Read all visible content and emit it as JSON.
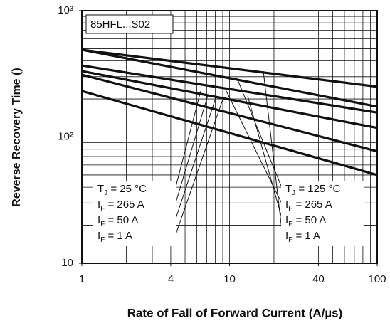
{
  "chart_data": {
    "type": "line",
    "title": "85HFL...S02",
    "xlabel": "Rate of Fall of Forward Current (A/µs)",
    "ylabel": "Reverse Recovery Time ()",
    "log_x": true,
    "log_y": true,
    "xlim": [
      1,
      100
    ],
    "ylim": [
      10,
      1000
    ],
    "xticks": [
      1,
      4,
      10,
      40,
      100
    ],
    "yticks": [
      {
        "value": 10,
        "label": "10"
      },
      {
        "value": 100,
        "label": "10²"
      },
      {
        "value": 1000,
        "label": "10³"
      }
    ],
    "xgrid": [
      1,
      2,
      3,
      4,
      5,
      6,
      7,
      8,
      9,
      10,
      20,
      30,
      40,
      50,
      60,
      70,
      80,
      90,
      100
    ],
    "ygrid": [
      10,
      20,
      30,
      40,
      50,
      60,
      70,
      80,
      90,
      100,
      200,
      300,
      400,
      500,
      600,
      700,
      800,
      900,
      1000
    ],
    "grid": true,
    "x": [
      1,
      100
    ],
    "series": [
      {
        "color": "#111111",
        "values": [
          490,
          250
        ]
      },
      {
        "color": "#111111",
        "values": [
          490,
          174
        ]
      },
      {
        "color": "#111111",
        "values": [
          368,
          156
        ]
      },
      {
        "color": "#111111",
        "values": [
          332,
          118
        ]
      },
      {
        "color": "#111111",
        "values": [
          311,
          77
        ]
      },
      {
        "color": "#111111",
        "values": [
          231,
          50
        ]
      }
    ],
    "annotations_left": [
      {
        "main": "T",
        "sub": "J",
        "rest": " =  25 °C"
      },
      {
        "main": "I",
        "sub": "F",
        "rest": " = 265 A"
      },
      {
        "main": "I",
        "sub": "F",
        "rest": " = 50 A"
      },
      {
        "main": "I",
        "sub": "F",
        "rest": " = 1 A"
      }
    ],
    "annotations_right": [
      {
        "main": "T",
        "sub": "J",
        "rest": " = 125 °C"
      },
      {
        "main": "I",
        "sub": "F",
        "rest": " = 265 A"
      },
      {
        "main": "I",
        "sub": "F",
        "rest": " = 50 A"
      },
      {
        "main": "I",
        "sub": "F",
        "rest": " = 1 A"
      }
    ]
  }
}
